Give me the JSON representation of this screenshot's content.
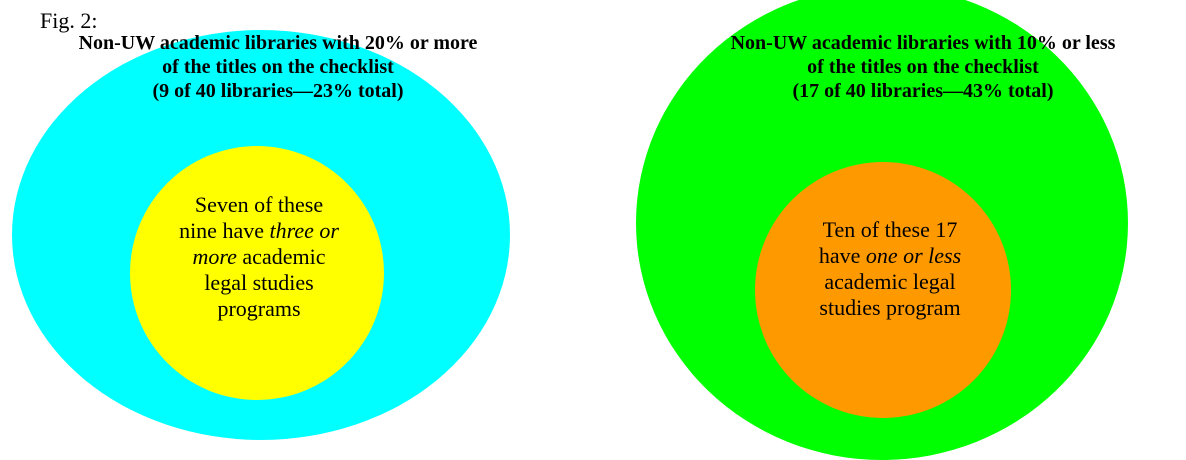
{
  "figure_label": "Fig. 2:",
  "colors": {
    "left_outer": "#00ffff",
    "left_inner": "#ffff00",
    "right_outer": "#00ff00",
    "right_inner": "#ff9900"
  },
  "left": {
    "heading": [
      "Non-UW academic libraries with 20% or more",
      "of the titles on the checklist",
      "(9 of 40 libraries—23% total)"
    ],
    "inner": {
      "line1": "Seven of these",
      "line2_a": "nine have ",
      "line2_em": "three or",
      "line3_em": "more",
      "line3_b": " academic",
      "line4": "legal studies",
      "line5": "programs"
    }
  },
  "right": {
    "heading": [
      "Non-UW academic libraries with 10% or less",
      "of the titles on the checklist",
      "(17 of 40 libraries—43% total)"
    ],
    "inner": {
      "line1": "Ten of these 17",
      "line2_a": "have ",
      "line2_em": "one or less",
      "line3": "academic legal",
      "line4": "studies program"
    }
  }
}
